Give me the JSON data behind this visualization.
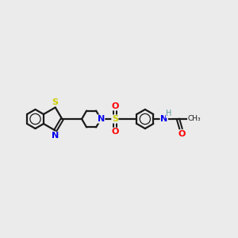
{
  "bg_color": "#ebebeb",
  "bond_color": "#1a1a1a",
  "S_color": "#cccc00",
  "N_color": "#0000ee",
  "O_color": "#ff0000",
  "H_color": "#5f9ea0",
  "figsize": [
    3.0,
    3.0
  ],
  "dpi": 100,
  "xlim": [
    0,
    12
  ],
  "ylim": [
    2,
    8
  ]
}
